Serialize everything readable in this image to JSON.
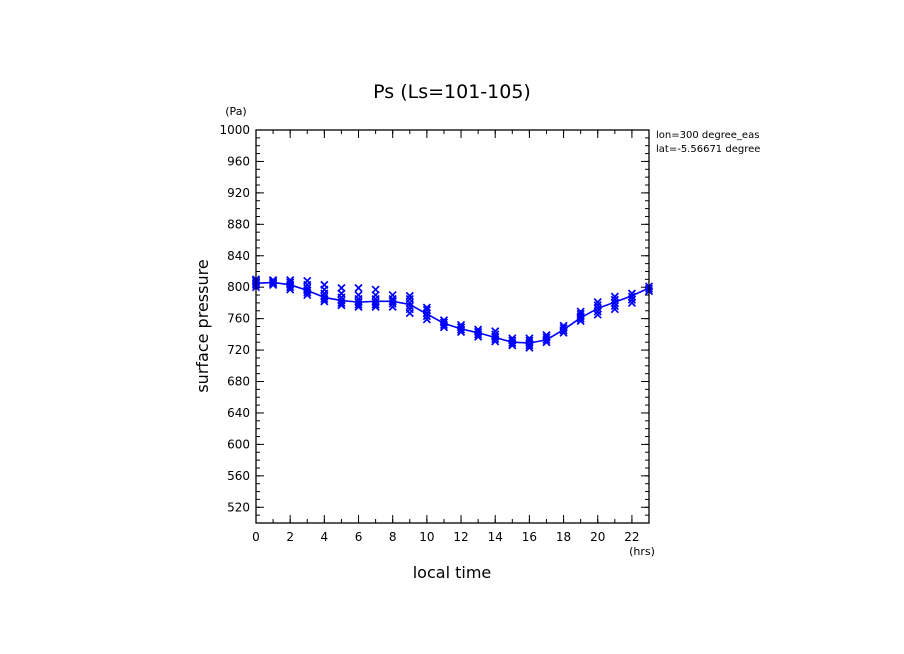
{
  "chart_data": {
    "type": "line",
    "title": "Ps (Ls=101-105)",
    "xlabel": "local time",
    "ylabel": "surface pressure",
    "x_unit": "(hrs)",
    "y_unit": "(Pa)",
    "xlim": [
      0,
      23
    ],
    "ylim": [
      500,
      1000
    ],
    "xticks": [
      0,
      2,
      4,
      6,
      8,
      10,
      12,
      14,
      16,
      18,
      20,
      22
    ],
    "yticks": [
      520,
      560,
      600,
      640,
      680,
      720,
      760,
      800,
      840,
      880,
      920,
      960,
      1000
    ],
    "x_minor_step": 1,
    "y_minor_step": 10,
    "annotations": [
      "lon=300 degree_eas",
      "lat=-5.56671 degree"
    ],
    "color": "#0000ff",
    "mean": {
      "x": [
        0,
        1,
        2,
        3,
        4,
        5,
        6,
        7,
        8,
        9,
        10,
        11,
        12,
        13,
        14,
        15,
        16,
        17,
        18,
        19,
        20,
        21,
        22,
        23
      ],
      "y": [
        805,
        806,
        803,
        796,
        787,
        783,
        781,
        782,
        782,
        778,
        766,
        754,
        747,
        742,
        736,
        730,
        729,
        733,
        746,
        761,
        773,
        781,
        789,
        799
      ]
    },
    "samples": [
      {
        "x": 0,
        "y": [
          800,
          803,
          805,
          807,
          809,
          810
        ]
      },
      {
        "x": 1,
        "y": [
          803,
          805,
          806,
          808,
          809
        ]
      },
      {
        "x": 2,
        "y": [
          797,
          800,
          803,
          806,
          809
        ]
      },
      {
        "x": 3,
        "y": [
          790,
          793,
          796,
          799,
          803,
          808
        ]
      },
      {
        "x": 4,
        "y": [
          782,
          785,
          788,
          792,
          797,
          803
        ]
      },
      {
        "x": 5,
        "y": [
          777,
          780,
          783,
          787,
          792,
          799
        ]
      },
      {
        "x": 6,
        "y": [
          775,
          778,
          781,
          785,
          790,
          799
        ]
      },
      {
        "x": 7,
        "y": [
          775,
          778,
          781,
          785,
          790,
          797
        ]
      },
      {
        "x": 8,
        "y": [
          775,
          779,
          782,
          785,
          790
        ]
      },
      {
        "x": 9,
        "y": [
          767,
          772,
          776,
          780,
          785,
          789
        ]
      },
      {
        "x": 10,
        "y": [
          759,
          763,
          767,
          771,
          774
        ]
      },
      {
        "x": 11,
        "y": [
          749,
          752,
          755,
          758
        ]
      },
      {
        "x": 12,
        "y": [
          743,
          746,
          749,
          752
        ]
      },
      {
        "x": 13,
        "y": [
          737,
          740,
          743,
          746
        ]
      },
      {
        "x": 14,
        "y": [
          731,
          734,
          737,
          740,
          744
        ]
      },
      {
        "x": 15,
        "y": [
          726,
          729,
          732,
          735
        ]
      },
      {
        "x": 16,
        "y": [
          723,
          726,
          729,
          732,
          735
        ]
      },
      {
        "x": 17,
        "y": [
          730,
          733,
          736,
          739
        ]
      },
      {
        "x": 18,
        "y": [
          742,
          745,
          748,
          751
        ]
      },
      {
        "x": 19,
        "y": [
          757,
          760,
          763,
          766,
          769
        ]
      },
      {
        "x": 20,
        "y": [
          765,
          769,
          773,
          777,
          781
        ]
      },
      {
        "x": 21,
        "y": [
          772,
          776,
          780,
          784,
          788
        ]
      },
      {
        "x": 22,
        "y": [
          780,
          784,
          788,
          792
        ]
      },
      {
        "x": 23,
        "y": [
          795,
          798,
          801
        ]
      }
    ]
  }
}
